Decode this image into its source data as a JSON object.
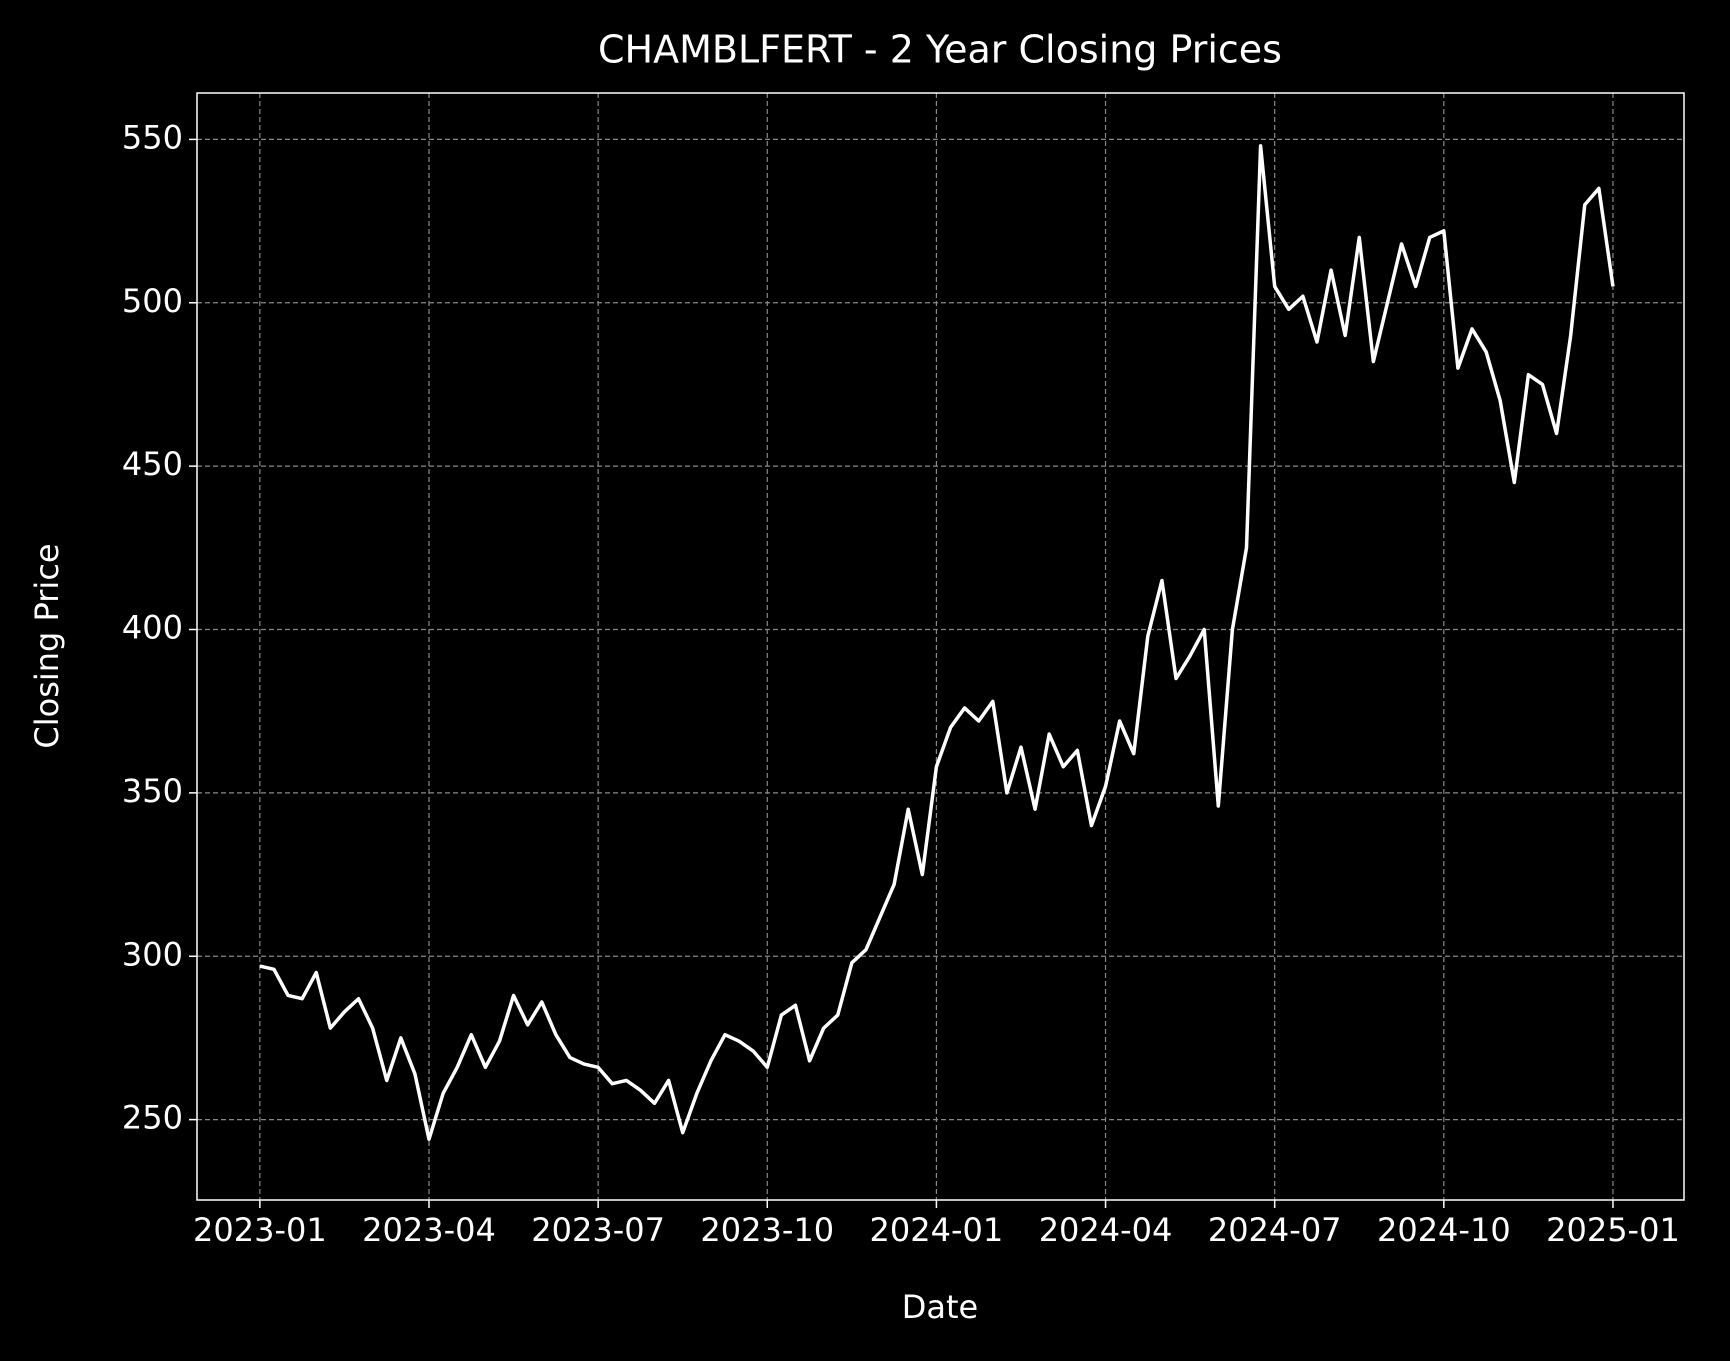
{
  "chart_data": {
    "type": "line",
    "title": "CHAMBLFERT - 2 Year Closing Prices",
    "x_label": "Date",
    "y_label": "Closing Price",
    "x": [
      0,
      0.25,
      0.5,
      0.75,
      1,
      1.25,
      1.5,
      1.75,
      2,
      2.25,
      2.5,
      2.75,
      3,
      3.25,
      3.5,
      3.75,
      4,
      4.25,
      4.5,
      4.75,
      5,
      5.25,
      5.5,
      5.75,
      6,
      6.25,
      6.5,
      6.75,
      7,
      7.25,
      7.5,
      7.75,
      8,
      8.25,
      8.5,
      8.75,
      9,
      9.25,
      9.5,
      9.75,
      10,
      10.25,
      10.5,
      10.75,
      11,
      11.25,
      11.5,
      11.75,
      12,
      12.25,
      12.5,
      12.75,
      13,
      13.25,
      13.5,
      13.75,
      14,
      14.25,
      14.5,
      14.75,
      15,
      15.25,
      15.5,
      15.75,
      16,
      16.25,
      16.5,
      16.75,
      17,
      17.25,
      17.5,
      17.75,
      18,
      18.25,
      18.5,
      18.75,
      19,
      19.25,
      19.5,
      19.75,
      20,
      20.25,
      20.5,
      20.75,
      21,
      21.25,
      21.5,
      21.75,
      22,
      22.25,
      22.5,
      22.75,
      23,
      23.25,
      23.5,
      23.75,
      24
    ],
    "series": [
      {
        "name": "Closing Price",
        "color": "#ffffff",
        "values": [
          297,
          296,
          288,
          287,
          295,
          278,
          283,
          287,
          278,
          262,
          275,
          264,
          244,
          258,
          266,
          276,
          266,
          274,
          288,
          279,
          286,
          276,
          269,
          267,
          266,
          261,
          262,
          259,
          255,
          262,
          246,
          258,
          268,
          276,
          274,
          271,
          266,
          282,
          285,
          268,
          278,
          282,
          298,
          302,
          312,
          322,
          345,
          325,
          358,
          370,
          376,
          372,
          378,
          350,
          364,
          345,
          368,
          358,
          363,
          340,
          352,
          372,
          362,
          398,
          415,
          385,
          392,
          400,
          346,
          400,
          425,
          548,
          505,
          498,
          502,
          488,
          510,
          490,
          520,
          482,
          500,
          518,
          505,
          520,
          522,
          480,
          492,
          485,
          470,
          445,
          478,
          475,
          460,
          490,
          530,
          535,
          505
        ]
      }
    ],
    "xlim": [
      -1.115,
      25.26
    ],
    "xticks": [
      {
        "value": 0,
        "label": "2023-01"
      },
      {
        "value": 3,
        "label": "2023-04"
      },
      {
        "value": 6,
        "label": "2023-07"
      },
      {
        "value": 9,
        "label": "2023-10"
      },
      {
        "value": 12,
        "label": "2024-01"
      },
      {
        "value": 15,
        "label": "2024-04"
      },
      {
        "value": 18,
        "label": "2024-07"
      },
      {
        "value": 21,
        "label": "2024-10"
      },
      {
        "value": 24,
        "label": "2025-01"
      }
    ],
    "ylim": [
      225.4,
      564.2
    ],
    "yticks": [
      250,
      300,
      350,
      400,
      450,
      500,
      550
    ],
    "grid": true
  }
}
